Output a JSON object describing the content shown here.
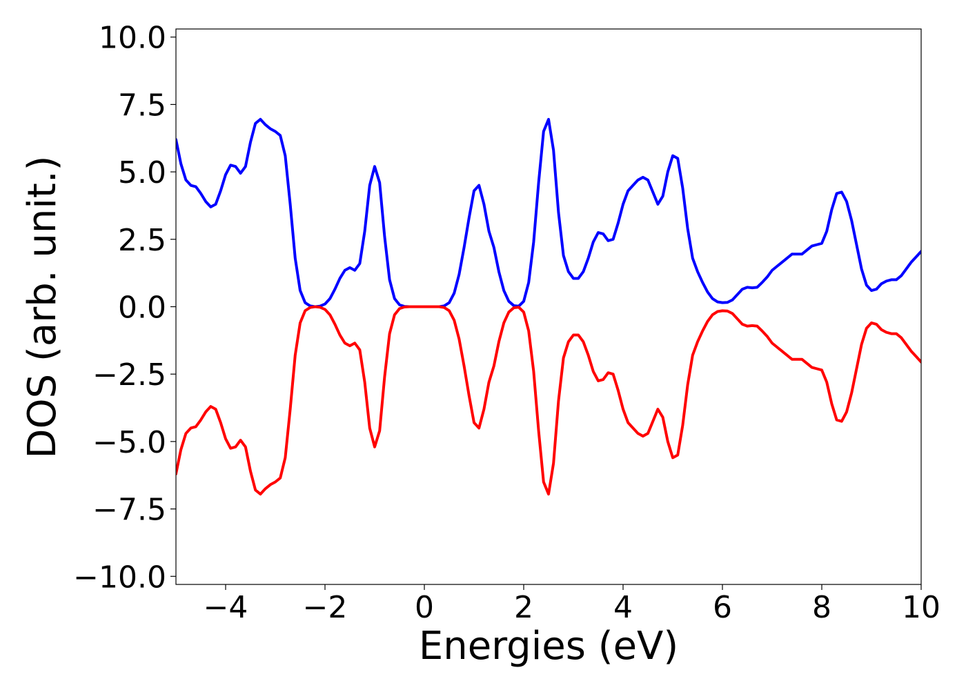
{
  "chart_data": {
    "type": "line",
    "xlabel": "Energies (eV)",
    "ylabel": "DOS (arb. unit.)",
    "x": [
      -5,
      -4.9,
      -4.8,
      -4.7,
      -4.6,
      -4.5,
      -4.4,
      -4.3,
      -4.2,
      -4.1,
      -4,
      -3.9,
      -3.8,
      -3.7,
      -3.6,
      -3.5,
      -3.4,
      -3.3,
      -3.2,
      -3.1,
      -3,
      -2.9,
      -2.8,
      -2.7,
      -2.6,
      -2.5,
      -2.4,
      -2.3,
      -2.2,
      -2.1,
      -2,
      -1.9,
      -1.8,
      -1.7,
      -1.6,
      -1.5,
      -1.4,
      -1.3,
      -1.2,
      -1.1,
      -1,
      -0.9,
      -0.8,
      -0.7,
      -0.6,
      -0.5,
      -0.4,
      -0.3,
      -0.2,
      -0.1,
      0,
      0.1,
      0.2,
      0.3,
      0.4,
      0.5,
      0.6,
      0.7,
      0.8,
      0.9,
      1,
      1.1,
      1.2,
      1.3,
      1.4,
      1.5,
      1.6,
      1.7,
      1.8,
      1.9,
      2,
      2.1,
      2.2,
      2.3,
      2.4,
      2.5,
      2.6,
      2.7,
      2.8,
      2.9,
      3,
      3.1,
      3.2,
      3.3,
      3.4,
      3.5,
      3.6,
      3.7,
      3.8,
      3.9,
      4,
      4.1,
      4.2,
      4.3,
      4.4,
      4.5,
      4.6,
      4.7,
      4.8,
      4.9,
      5,
      5.1,
      5.2,
      5.3,
      5.4,
      5.5,
      5.6,
      5.7,
      5.8,
      5.9,
      6,
      6.1,
      6.2,
      6.3,
      6.4,
      6.5,
      6.6,
      6.7,
      6.8,
      6.9,
      7,
      7.1,
      7.2,
      7.3,
      7.4,
      7.5,
      7.6,
      7.7,
      7.8,
      7.9,
      8,
      8.1,
      8.2,
      8.3,
      8.4,
      8.5,
      8.6,
      8.7,
      8.8,
      8.9,
      9,
      9.1,
      9.2,
      9.3,
      9.4,
      9.5,
      9.6,
      9.7,
      9.8,
      9.9,
      10
    ],
    "series": [
      {
        "color": "#0000ff",
        "values": [
          6.2,
          5.3,
          4.7,
          4.5,
          4.45,
          4.2,
          3.9,
          3.7,
          3.8,
          4.3,
          4.9,
          5.25,
          5.2,
          4.95,
          5.2,
          6.1,
          6.8,
          6.95,
          6.75,
          6.6,
          6.5,
          6.35,
          5.6,
          3.8,
          1.8,
          0.6,
          0.15,
          0.03,
          0,
          0.02,
          0.1,
          0.3,
          0.65,
          1.05,
          1.35,
          1.45,
          1.35,
          1.6,
          2.8,
          4.5,
          5.2,
          4.6,
          2.6,
          1,
          0.3,
          0.07,
          0.01,
          0,
          0,
          0,
          0,
          0,
          0,
          0,
          0.03,
          0.15,
          0.5,
          1.2,
          2.2,
          3.3,
          4.3,
          4.5,
          3.8,
          2.8,
          2.2,
          1.3,
          0.6,
          0.2,
          0.04,
          0.02,
          0.2,
          0.9,
          2.4,
          4.6,
          6.5,
          6.95,
          5.8,
          3.5,
          1.9,
          1.3,
          1.05,
          1.05,
          1.3,
          1.8,
          2.4,
          2.75,
          2.7,
          2.45,
          2.5,
          3.1,
          3.8,
          4.3,
          4.5,
          4.7,
          4.8,
          4.7,
          4.25,
          3.8,
          4.1,
          5,
          5.6,
          5.5,
          4.4,
          2.9,
          1.8,
          1.3,
          0.9,
          0.55,
          0.3,
          0.18,
          0.15,
          0.16,
          0.25,
          0.45,
          0.65,
          0.72,
          0.7,
          0.72,
          0.9,
          1.1,
          1.35,
          1.5,
          1.65,
          1.8,
          1.95,
          1.95,
          1.95,
          2.1,
          2.25,
          2.3,
          2.35,
          2.8,
          3.6,
          4.2,
          4.25,
          3.9,
          3.2,
          2.3,
          1.4,
          0.8,
          0.6,
          0.65,
          0.85,
          0.95,
          1,
          1,
          1.15,
          1.4,
          1.65,
          1.85,
          2.05
        ]
      },
      {
        "color": "#ff0000",
        "values": [
          -6.2,
          -5.3,
          -4.7,
          -4.5,
          -4.45,
          -4.2,
          -3.9,
          -3.7,
          -3.8,
          -4.3,
          -4.9,
          -5.25,
          -5.2,
          -4.95,
          -5.2,
          -6.1,
          -6.8,
          -6.95,
          -6.75,
          -6.6,
          -6.5,
          -6.35,
          -5.6,
          -3.8,
          -1.8,
          -0.6,
          -0.15,
          -0.03,
          0,
          -0.02,
          -0.1,
          -0.3,
          -0.65,
          -1.05,
          -1.35,
          -1.45,
          -1.35,
          -1.6,
          -2.8,
          -4.5,
          -5.2,
          -4.6,
          -2.6,
          -1,
          -0.3,
          -0.07,
          -0.01,
          0,
          0,
          0,
          0,
          0,
          0,
          0,
          -0.03,
          -0.15,
          -0.5,
          -1.2,
          -2.2,
          -3.3,
          -4.3,
          -4.5,
          -3.8,
          -2.8,
          -2.2,
          -1.3,
          -0.6,
          -0.2,
          -0.04,
          -0.02,
          -0.2,
          -0.9,
          -2.4,
          -4.6,
          -6.5,
          -6.95,
          -5.8,
          -3.5,
          -1.9,
          -1.3,
          -1.05,
          -1.05,
          -1.3,
          -1.8,
          -2.4,
          -2.75,
          -2.7,
          -2.45,
          -2.5,
          -3.1,
          -3.8,
          -4.3,
          -4.5,
          -4.7,
          -4.8,
          -4.7,
          -4.25,
          -3.8,
          -4.1,
          -5,
          -5.6,
          -5.5,
          -4.4,
          -2.9,
          -1.8,
          -1.3,
          -0.9,
          -0.55,
          -0.3,
          -0.18,
          -0.15,
          -0.16,
          -0.25,
          -0.45,
          -0.65,
          -0.72,
          -0.7,
          -0.72,
          -0.9,
          -1.1,
          -1.35,
          -1.5,
          -1.65,
          -1.8,
          -1.95,
          -1.95,
          -1.95,
          -2.1,
          -2.25,
          -2.3,
          -2.35,
          -2.8,
          -3.6,
          -4.2,
          -4.25,
          -3.9,
          -3.2,
          -2.3,
          -1.4,
          -0.8,
          -0.6,
          -0.65,
          -0.85,
          -0.95,
          -1,
          -1,
          -1.15,
          -1.4,
          -1.65,
          -1.85,
          -2.05
        ]
      }
    ],
    "xlim": [
      -5,
      10
    ],
    "xticks": [
      {
        "value": -4,
        "label": "−4"
      },
      {
        "value": -2,
        "label": "−2"
      },
      0,
      2,
      4,
      6,
      8,
      10
    ],
    "ylim": [
      -10.3,
      10.3
    ],
    "yticks": [
      {
        "value": -10,
        "label": "−10.0"
      },
      {
        "value": -7.5,
        "label": "−7.5"
      },
      {
        "value": -5,
        "label": "−5.0"
      },
      {
        "value": -2.5,
        "label": "−2.5"
      },
      {
        "value": 0,
        "label": "0.0"
      },
      2.5,
      {
        "value": 5,
        "label": "5.0"
      },
      7.5,
      {
        "value": 10,
        "label": "10.0"
      }
    ],
    "grid": false
  }
}
